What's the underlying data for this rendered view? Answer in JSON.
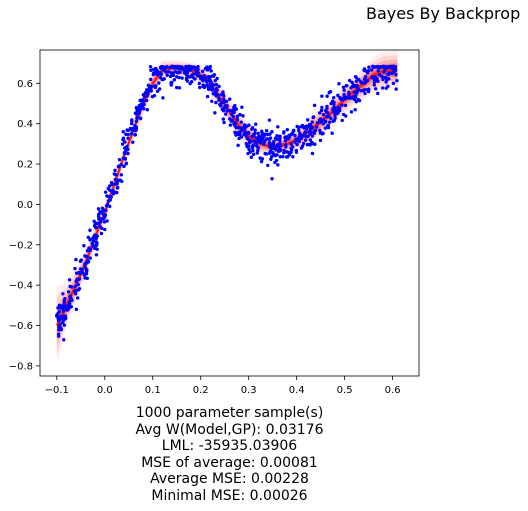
{
  "figure": {
    "suptitle": "Bayes By Backprop",
    "stats": [
      "1000 parameter sample(s)",
      "Avg W(Model,GP): 0.03176",
      "LML: -35935.03906",
      "MSE of average: 0.00081",
      "Average MSE: 0.00228",
      "Minimal MSE: 0.00026"
    ],
    "colors": {
      "observations": "#0000ff",
      "samples": "#ff0000",
      "axes": "#000000"
    }
  },
  "chart_data": {
    "type": "scatter",
    "title": "",
    "xlabel": "",
    "ylabel": "",
    "xlim": [
      -0.135,
      0.655
    ],
    "ylim": [
      -0.85,
      0.765
    ],
    "xticks": [
      -0.1,
      0.0,
      0.1,
      0.2,
      0.3,
      0.4,
      0.5,
      0.6
    ],
    "xtick_labels": [
      "−0.1",
      "0.0",
      "0.1",
      "0.2",
      "0.3",
      "0.4",
      "0.5",
      "0.6"
    ],
    "yticks": [
      -0.8,
      -0.6,
      -0.4,
      -0.2,
      0.0,
      0.2,
      0.4,
      0.6
    ],
    "ytick_labels": [
      "−0.8",
      "−0.6",
      "−0.4",
      "−0.2",
      "0.0",
      "0.2",
      "0.4",
      "0.6"
    ],
    "grid": false,
    "legend": "none",
    "series": [
      {
        "kind": "line-band",
        "color": "#ff0000",
        "x": [
          -0.1,
          -0.08,
          -0.06,
          -0.04,
          -0.02,
          0.0,
          0.02,
          0.04,
          0.06,
          0.08,
          0.1,
          0.12,
          0.14,
          0.16,
          0.18,
          0.2,
          0.22,
          0.24,
          0.26,
          0.28,
          0.3,
          0.32,
          0.34,
          0.36,
          0.38,
          0.4,
          0.42,
          0.44,
          0.46,
          0.48,
          0.5,
          0.52,
          0.54,
          0.56,
          0.58,
          0.6,
          0.61
        ],
        "mean": [
          -0.6,
          -0.5,
          -0.4,
          -0.29,
          -0.16,
          -0.04,
          0.1,
          0.24,
          0.37,
          0.5,
          0.6,
          0.665,
          0.675,
          0.672,
          0.665,
          0.64,
          0.6,
          0.53,
          0.46,
          0.39,
          0.34,
          0.305,
          0.29,
          0.29,
          0.3,
          0.32,
          0.35,
          0.39,
          0.43,
          0.47,
          0.52,
          0.56,
          0.6,
          0.64,
          0.66,
          0.665,
          0.665
        ],
        "spread": [
          0.12,
          0.07,
          0.05,
          0.04,
          0.035,
          0.03,
          0.03,
          0.03,
          0.03,
          0.035,
          0.035,
          0.03,
          0.025,
          0.025,
          0.025,
          0.03,
          0.035,
          0.04,
          0.04,
          0.04,
          0.04,
          0.035,
          0.03,
          0.03,
          0.03,
          0.035,
          0.04,
          0.045,
          0.045,
          0.045,
          0.045,
          0.045,
          0.05,
          0.055,
          0.06,
          0.06,
          0.065
        ]
      },
      {
        "kind": "points",
        "color": "#0000ff",
        "count": 1000,
        "x_range": [
          -0.1,
          0.61
        ],
        "ceiling": 0.685,
        "noise_sd": 0.045
      }
    ]
  }
}
